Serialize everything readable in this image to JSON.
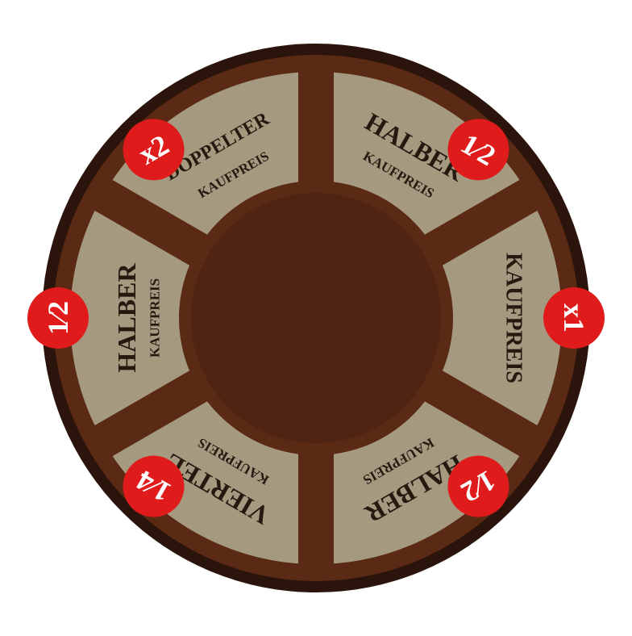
{
  "colors": {
    "background": "#ffffff",
    "rim": "#2b140b",
    "board": "#5a2a15",
    "hub": "#4f2412",
    "panel": "#a59a80",
    "text": "#241a10",
    "badge": "#e01b1b",
    "badge_text": "#ffffff"
  },
  "segments": [
    {
      "id": "top-left",
      "title": "DOPPELTER",
      "subtitle": "KAUFPREIS",
      "badge": "x2"
    },
    {
      "id": "top-right",
      "title": "HALBER",
      "subtitle": "KAUFPREIS",
      "badge": "1/2"
    },
    {
      "id": "right",
      "title": "KAUFPREIS",
      "subtitle": "",
      "badge": "x1"
    },
    {
      "id": "bottom-right",
      "title": "HALBER",
      "subtitle": "KAUFPREIS",
      "badge": "1/2"
    },
    {
      "id": "bottom-left",
      "title": "VIERTEL",
      "subtitle": "KAUFPREIS",
      "badge": "1/4"
    },
    {
      "id": "left",
      "title": "HALBER",
      "subtitle": "KAUFPREIS",
      "badge": "1/2"
    }
  ]
}
